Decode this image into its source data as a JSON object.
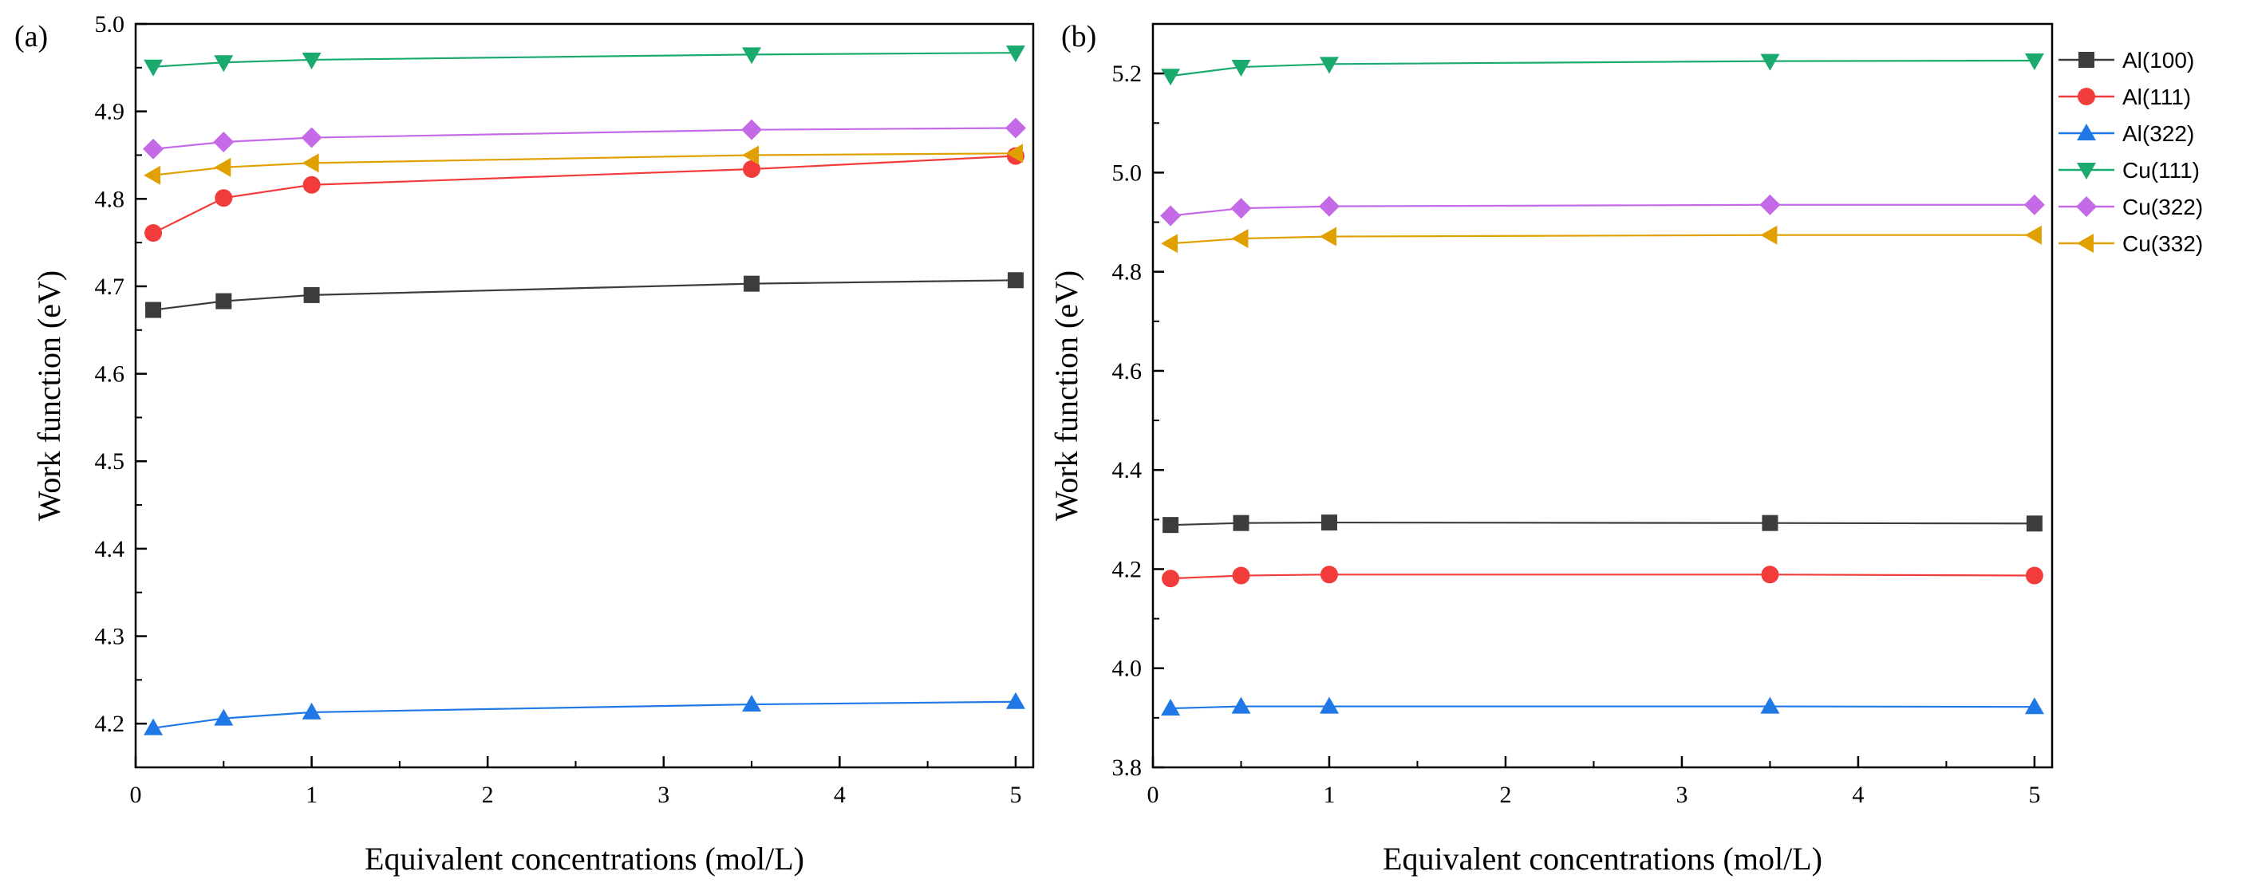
{
  "figure": {
    "legend_entries": [
      {
        "name": "Al(100)",
        "color": "#3c3c3c",
        "marker": "square"
      },
      {
        "name": "Al(111)",
        "color": "#f23c3c",
        "marker": "circle"
      },
      {
        "name": "Al(322)",
        "color": "#1f78e6",
        "marker": "triangle-up"
      },
      {
        "name": "Cu(111)",
        "color": "#1aaa6e",
        "marker": "triangle-down"
      },
      {
        "name": "Cu(322)",
        "color": "#c46ae6",
        "marker": "diamond"
      },
      {
        "name": "Cu(332)",
        "color": "#e0a000",
        "marker": "triangle-left"
      }
    ]
  },
  "chart_data": [
    {
      "type": "line",
      "panel_label": "(a)",
      "title": "",
      "xlabel": "Equivalent concentrations (mol/L)",
      "ylabel": "Work function (eV)",
      "xlim": [
        0,
        5.1
      ],
      "ylim": [
        4.15,
        5.0
      ],
      "xticks": [
        0,
        1,
        2,
        3,
        4,
        5
      ],
      "xtick_labels": [
        "0",
        "1",
        "2",
        "3",
        "4",
        "5"
      ],
      "yticks": [
        4.2,
        4.3,
        4.4,
        4.5,
        4.6,
        4.7,
        4.8,
        4.9,
        5.0
      ],
      "ytick_labels": [
        "4.2",
        "4.3",
        "4.4",
        "4.5",
        "4.6",
        "4.7",
        "4.8",
        "4.9",
        "5.0"
      ],
      "x": [
        0.1,
        0.5,
        1,
        3.5,
        5
      ],
      "grid": false,
      "series": [
        {
          "name": "Al(100)",
          "values": [
            4.673,
            4.683,
            4.69,
            4.703,
            4.707
          ]
        },
        {
          "name": "Al(111)",
          "values": [
            4.761,
            4.801,
            4.816,
            4.834,
            4.849
          ]
        },
        {
          "name": "Al(322)",
          "values": [
            4.195,
            4.206,
            4.213,
            4.222,
            4.225
          ]
        },
        {
          "name": "Cu(111)",
          "values": [
            4.951,
            4.956,
            4.959,
            4.965,
            4.967
          ]
        },
        {
          "name": "Cu(322)",
          "values": [
            4.857,
            4.865,
            4.87,
            4.879,
            4.881
          ]
        },
        {
          "name": "Cu(332)",
          "values": [
            4.827,
            4.836,
            4.841,
            4.85,
            4.852
          ]
        }
      ]
    },
    {
      "type": "line",
      "panel_label": "(b)",
      "title": "",
      "xlabel": "Equivalent concentrations (mol/L)",
      "ylabel": "Work function (eV)",
      "xlim": [
        0,
        5.1
      ],
      "ylim": [
        3.8,
        5.3
      ],
      "xticks": [
        0,
        1,
        2,
        3,
        4,
        5
      ],
      "xtick_labels": [
        "0",
        "1",
        "2",
        "3",
        "4",
        "5"
      ],
      "yticks": [
        3.8,
        4.0,
        4.2,
        4.4,
        4.6,
        4.8,
        5.0,
        5.2
      ],
      "ytick_labels": [
        "3.8",
        "4.0",
        "4.2",
        "4.4",
        "4.6",
        "4.8",
        "5.0",
        "5.2"
      ],
      "x": [
        0.1,
        0.5,
        1,
        3.5,
        5
      ],
      "grid": false,
      "legend": "right-outside",
      "series": [
        {
          "name": "Al(100)",
          "values": [
            4.289,
            4.293,
            4.294,
            4.293,
            4.292
          ]
        },
        {
          "name": "Al(111)",
          "values": [
            4.181,
            4.187,
            4.189,
            4.189,
            4.187
          ]
        },
        {
          "name": "Al(322)",
          "values": [
            3.919,
            3.923,
            3.923,
            3.923,
            3.922
          ]
        },
        {
          "name": "Cu(111)",
          "values": [
            5.195,
            5.213,
            5.219,
            5.225,
            5.226
          ]
        },
        {
          "name": "Cu(322)",
          "values": [
            4.913,
            4.928,
            4.932,
            4.935,
            4.935
          ]
        },
        {
          "name": "Cu(332)",
          "values": [
            4.857,
            4.867,
            4.871,
            4.874,
            4.874
          ]
        }
      ]
    }
  ]
}
